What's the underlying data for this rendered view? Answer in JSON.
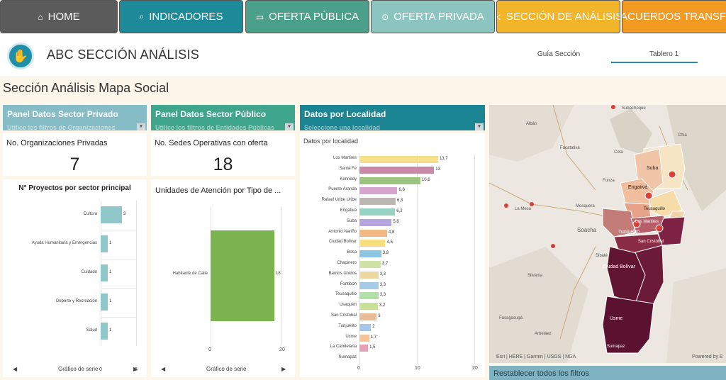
{
  "nav": [
    {
      "label": "HOME",
      "icon": "home-icon",
      "glyph": "⌂",
      "color": "#5b5b5b"
    },
    {
      "label": "INDICADORES",
      "icon": "search-icon",
      "glyph": "⌕",
      "color": "#1d8a9a"
    },
    {
      "label": "OFERTA PÚBLICA",
      "icon": "folder-icon",
      "glyph": "▭",
      "color": "#4aa089"
    },
    {
      "label": "OFERTA PRIVADA",
      "icon": "location-pin-icon",
      "glyph": "⊙",
      "color": "#8cc5c0"
    },
    {
      "label": "SECCIÓN DE ANÁLISIS",
      "icon": "share-icon",
      "glyph": "≺",
      "color": "#f2b52a"
    },
    {
      "label": "ACUERDOS TRANSFOR",
      "icon": "star-icon",
      "glyph": "★",
      "color": "#f39a22"
    }
  ],
  "header": {
    "title": "ABC SECCIÓN ANÁLISIS",
    "tabs": [
      "Guía Sección",
      "Tablero 1"
    ]
  },
  "section_title": "Sección Análisis Mapa Social",
  "panels": [
    {
      "title": "Panel Datos Sector Privado",
      "subtitle": "Utilice los filtros de Organizaciones",
      "color": "#86bcc6"
    },
    {
      "title": "Panel Datos Sector Público",
      "subtitle": "Utilice los filtros de Entidades Públicas",
      "color": "#3fa58c"
    },
    {
      "title": "Datos por Localidad",
      "subtitle": "Seleccione una localidad",
      "color": "#1b8594"
    }
  ],
  "kpis": [
    {
      "label": "No. Organizaciones Privadas",
      "value": "7"
    },
    {
      "label": "No. Sedes Operativas con oferta",
      "value": "18"
    }
  ],
  "chart_data": [
    {
      "type": "bar",
      "orientation": "horizontal",
      "title": "N° Proyectos por sector principal",
      "categories": [
        "Cultura",
        "Ayuda Humanitaria y Emergencias",
        "Cuidado",
        "Deporte y Recreación",
        "Salud"
      ],
      "values": [
        3,
        1,
        1,
        1,
        1
      ],
      "xlim": [
        0,
        5
      ],
      "ticks": [
        "0",
        "5"
      ],
      "color": "#90c7c9",
      "footer": "Gráfico de serie"
    },
    {
      "type": "bar",
      "orientation": "horizontal",
      "title": "Unidades de Atención por Tipo de ...",
      "categories": [
        "Habitante de Calle"
      ],
      "values": [
        18
      ],
      "xlim": [
        0,
        20
      ],
      "ticks": [
        "0",
        "20"
      ],
      "color": "#7bb34f",
      "footer": "Gráfico de serie"
    },
    {
      "type": "bar",
      "orientation": "horizontal",
      "title": "Datos por localidad",
      "categories": [
        "Los Martires",
        "Santa Fe",
        "Kennedy",
        "Puente Aranda",
        "Rafael Uribe Uribe",
        "Engativa",
        "Suba",
        "Antonio Nariño",
        "Ciudad Bolivar",
        "Bosa",
        "Chapinero",
        "Barrios Unidos",
        "Fontibon",
        "Teusaquillo",
        "Usaquen",
        "San Cristobal",
        "Tunjuelito",
        "Usme",
        "La Candelaria",
        "Sumapaz"
      ],
      "values": [
        13.7,
        13,
        10.6,
        6.6,
        6.3,
        6.2,
        5.6,
        4.8,
        4.5,
        3.8,
        3.7,
        3.3,
        3.3,
        3.3,
        3.2,
        3,
        2,
        1.7,
        1.5,
        0
      ],
      "value_labels": [
        "13,7",
        "13",
        "10,6",
        "6,6",
        "6,3",
        "6,2",
        "5,6",
        "4,8",
        "4,5",
        "3,8",
        "3,7",
        "3,3",
        "3,3",
        "3,3",
        "3,2",
        "3",
        "2",
        "1,7",
        "1,5",
        ""
      ],
      "colors": [
        "#f7e08a",
        "#c98aa8",
        "#9cc47e",
        "#d7a5d0",
        "#bdb6b3",
        "#98d2c2",
        "#b6a6e0",
        "#f3b884",
        "#f9de80",
        "#8cc6e4",
        "#cfe3a6",
        "#edd7a0",
        "#a6cbe6",
        "#b3dfa8",
        "#c9e09a",
        "#e8bc98",
        "#a7c7e9",
        "#f5c39a",
        "#e4a1b7",
        "#d8d8d8"
      ],
      "xlim": [
        0,
        15
      ],
      "ticks": [
        "0",
        "10",
        "20"
      ]
    }
  ],
  "map": {
    "labels": [
      "Subachoque",
      "Albán",
      "Facatativá",
      "Funza",
      "La Mesa",
      "Soacha",
      "Sibaté",
      "Fusagasugá",
      "Arbeláez",
      "Silvania",
      "Suba",
      "Engativá",
      "Teusaquillo",
      "Los Mártires",
      "Tunjuelito",
      "San Cristóbal",
      "Ciudad Bolívar",
      "Usme",
      "Sumapaz",
      "Chía",
      "Cota",
      "Mosquera"
    ],
    "attribution": "Esri | HERE | Garmin | USGS | NGA",
    "powered": "Powered by E"
  },
  "reset_label": "Restablecer todos los filtros"
}
